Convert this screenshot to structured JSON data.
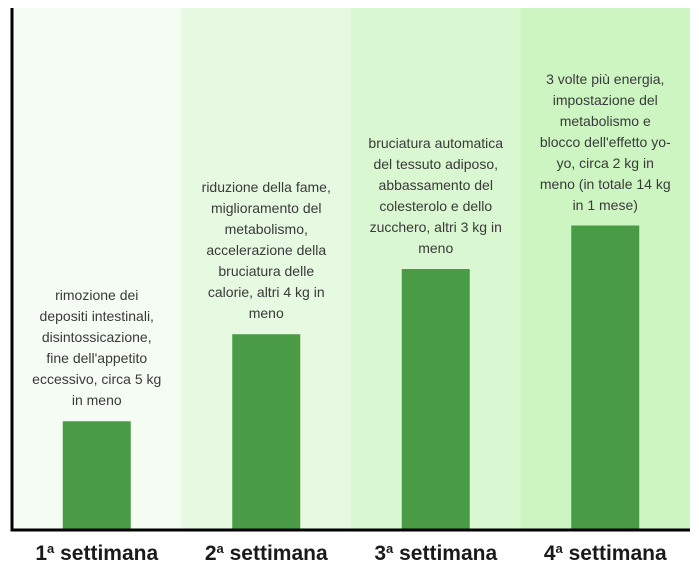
{
  "chart_data": {
    "type": "bar",
    "categories": [
      "1ª settimana",
      "2ª settimana",
      "3ª settimana",
      "4ª settimana"
    ],
    "values": [
      5,
      9,
      12,
      14
    ],
    "ylim": [
      0,
      24
    ],
    "grid": false,
    "annotations": [
      "rimozione dei depositi intestinali, disintossicazione, fine dell'appetito eccessivo, circa 5 kg in meno",
      "riduzione della fame, miglioramento del metabolismo, accelerazione della bruciatura delle calorie, altri 4 kg in meno",
      "bruciatura automatica del tessuto adiposo, abbassamento del colesterolo e dello zucchero, altri 3 kg in meno",
      "3 volte più energia, impostazione del metabolismo e blocco dell'effetto yo-yo, circa 2 kg in meno (in totale 14 kg in 1 mese)"
    ],
    "label_parts": [
      {
        "num": "1",
        "sup": "a",
        "word": " settimana"
      },
      {
        "num": "2",
        "sup": "a",
        "word": " settimana"
      },
      {
        "num": "3",
        "sup": "a",
        "word": " settimana"
      },
      {
        "num": "4",
        "sup": "a",
        "word": " settimana"
      }
    ],
    "colors": {
      "bar": "#4a9b46",
      "panels": [
        "#f5fcf3",
        "#e6f9e1",
        "#d9f7d1",
        "#ccf5c2"
      ],
      "axis": "#000000"
    }
  }
}
